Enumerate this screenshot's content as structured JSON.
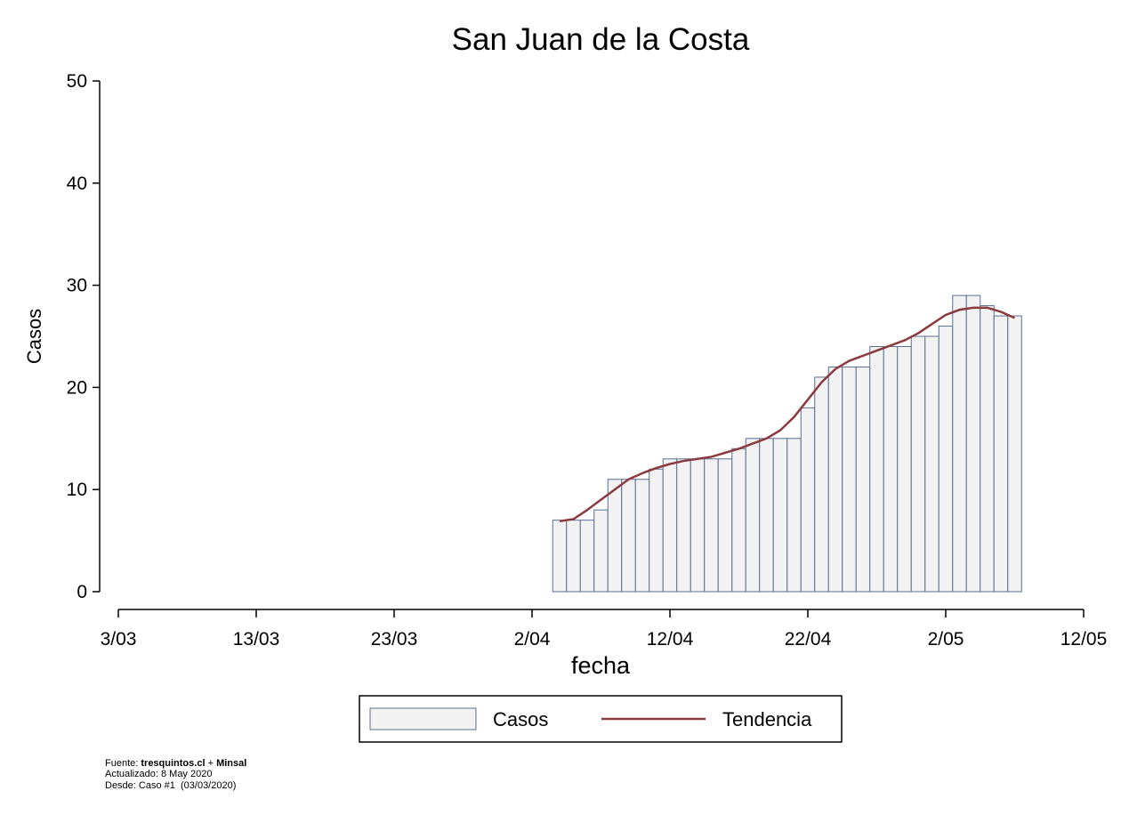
{
  "chart_data": {
    "type": "bar",
    "title": "San Juan de la Costa",
    "xlabel": "fecha",
    "ylabel": "Casos",
    "x": [
      "4/04",
      "5/04",
      "6/04",
      "7/04",
      "8/04",
      "9/04",
      "10/04",
      "11/04",
      "12/04",
      "13/04",
      "14/04",
      "15/04",
      "16/04",
      "17/04",
      "18/04",
      "19/04",
      "20/04",
      "21/04",
      "22/04",
      "23/04",
      "24/04",
      "25/04",
      "26/04",
      "27/04",
      "28/04",
      "29/04",
      "30/04",
      "1/05",
      "2/05",
      "3/05",
      "4/05",
      "5/05",
      "6/05",
      "7/05"
    ],
    "series": [
      {
        "name": "Casos",
        "type": "bar",
        "color": "#f2f2f2",
        "edgecolor": "#5b6f90",
        "values": [
          7,
          7,
          7,
          8,
          11,
          11,
          11,
          12,
          13,
          13,
          13,
          13,
          13,
          14,
          15,
          15,
          15,
          15,
          18,
          21,
          22,
          22,
          22,
          24,
          24,
          24,
          25,
          25,
          26,
          29,
          29,
          28,
          27,
          27
        ]
      },
      {
        "name": "Tendencia",
        "type": "line",
        "color": "#8b3a3f",
        "values": [
          6.9,
          7.1,
          8.0,
          9.0,
          10.0,
          11.0,
          11.6,
          12.1,
          12.5,
          12.8,
          13.0,
          13.2,
          13.6,
          14.0,
          14.5,
          15.0,
          15.8,
          17.1,
          18.8,
          20.5,
          21.8,
          22.6,
          23.1,
          23.6,
          24.1,
          24.6,
          25.3,
          26.2,
          27.1,
          27.6,
          27.8,
          27.8,
          27.4,
          26.8
        ]
      }
    ],
    "xlim": [
      "3/03",
      "12/05"
    ],
    "xticks": [
      "3/03",
      "13/03",
      "23/03",
      "2/04",
      "12/04",
      "22/04",
      "2/05",
      "12/05"
    ],
    "ylim": [
      0,
      50
    ],
    "yticks": [
      0,
      10,
      20,
      30,
      40,
      50
    ],
    "grid": false,
    "legend": "bottom",
    "footer": {
      "source_label": "Fuente:",
      "source_site": "tresquintos.cl",
      "source_sep": "+",
      "source_org": "Minsal",
      "updated": "Actualizado: 8 May 2020",
      "since": "Desde: Caso #1  (03/03/2020)"
    }
  }
}
